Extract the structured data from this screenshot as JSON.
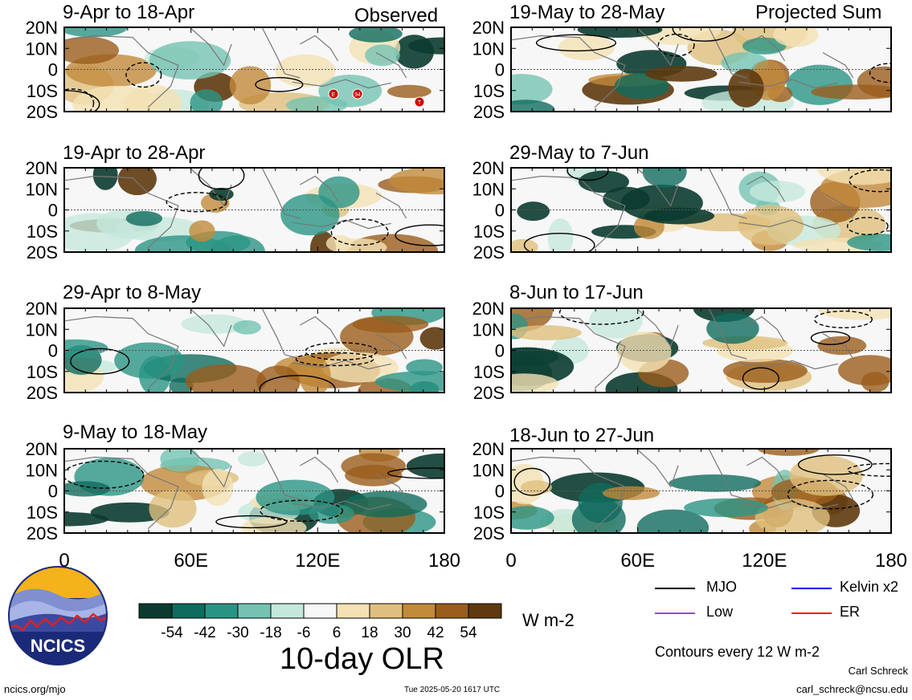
{
  "observed_label": "Observed",
  "projected_label": "Projected Sum",
  "panels": [
    {
      "title": "9-Apr to 18-Apr",
      "col": 0,
      "row": 0
    },
    {
      "title": "19-Apr to 28-Apr",
      "col": 0,
      "row": 1
    },
    {
      "title": "29-Apr to 8-May",
      "col": 0,
      "row": 2
    },
    {
      "title": "9-May to 18-May",
      "col": 0,
      "row": 3
    },
    {
      "title": "19-May to 28-May",
      "col": 1,
      "row": 0
    },
    {
      "title": "29-May to 7-Jun",
      "col": 1,
      "row": 1
    },
    {
      "title": "8-Jun to 17-Jun",
      "col": 1,
      "row": 2
    },
    {
      "title": "18-Jun to 27-Jun",
      "col": 1,
      "row": 3
    }
  ],
  "lat_ticks": [
    "20N",
    "10N",
    "0",
    "10S",
    "20S"
  ],
  "lon_ticks": [
    "0",
    "60E",
    "120E",
    "180"
  ],
  "storm_markers": [
    "E",
    "94",
    "T"
  ],
  "colorbar": {
    "tick_labels": [
      "-54",
      "-42",
      "-30",
      "-18",
      "-6",
      "6",
      "18",
      "30",
      "42",
      "54"
    ],
    "colors": [
      "#0b3b2f",
      "#0f6b5e",
      "#2a9585",
      "#74c3b2",
      "#c5e8dc",
      "#f7f7f7",
      "#f4e1b4",
      "#dfbf7d",
      "#c28a3b",
      "#9a5d1c",
      "#5e3a0e"
    ],
    "unit": "W m-2",
    "title": "10-day OLR"
  },
  "legend": {
    "items": [
      {
        "label": "MJO",
        "color": "#000000"
      },
      {
        "label": "Kelvin x2",
        "color": "#0000ff"
      },
      {
        "label": "Low",
        "color": "#a040e0"
      },
      {
        "label": "ER",
        "color": "#ff0000"
      }
    ],
    "contour_note": "Contours every 12 W m-2"
  },
  "footer": {
    "url": "ncics.org/mjo",
    "timestamp": "Tue 2025-05-20 1617 UTC",
    "author": "Carl Schreck",
    "email": "carl_schreck@ncsu.edu"
  },
  "logo_text": "NCICS"
}
